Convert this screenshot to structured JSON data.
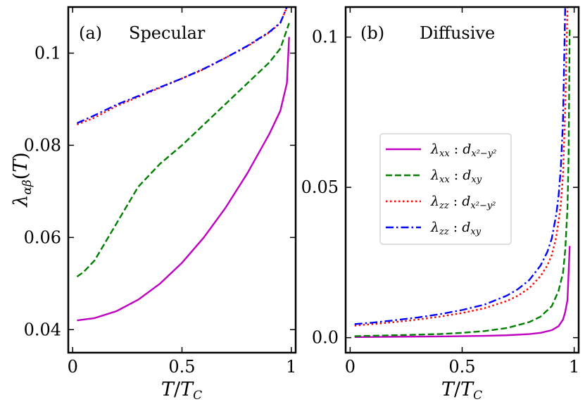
{
  "colors": {
    "magenta": "#c000c0",
    "green": "#008000",
    "red": "#ff0000",
    "blue": "#0000ff"
  },
  "chart_data": [
    {
      "type": "line",
      "title": "Specular",
      "panel_label": "(a)",
      "xlabel": "T/T_C",
      "ylabel": "λ_αβ(T)",
      "xlim": [
        -0.02,
        1.02
      ],
      "ylim": [
        0.035,
        0.11
      ],
      "xticks": [
        0,
        0.5,
        1
      ],
      "xtick_labels": [
        "0",
        "0.5",
        "1"
      ],
      "yticks": [
        0.04,
        0.06,
        0.08,
        0.1
      ],
      "ytick_labels": [
        "0.04",
        "0.06",
        "0.08",
        "0.1"
      ],
      "series": [
        {
          "name": "λxx : dx²−y²",
          "color": "#c000c0",
          "dash": "solid",
          "x": [
            0.02,
            0.1,
            0.2,
            0.3,
            0.4,
            0.5,
            0.6,
            0.7,
            0.8,
            0.9,
            0.95,
            0.98,
            0.99
          ],
          "y": [
            0.042,
            0.0425,
            0.044,
            0.0465,
            0.05,
            0.0545,
            0.06,
            0.0665,
            0.074,
            0.0825,
            0.0875,
            0.0935,
            0.1035
          ]
        },
        {
          "name": "λxx : dxy",
          "color": "#008000",
          "dash": "dashed",
          "x": [
            0.02,
            0.05,
            0.1,
            0.2,
            0.3,
            0.4,
            0.5,
            0.6,
            0.7,
            0.8,
            0.9,
            0.95,
            0.99
          ],
          "y": [
            0.0515,
            0.0525,
            0.055,
            0.063,
            0.071,
            0.076,
            0.08,
            0.0845,
            0.089,
            0.0935,
            0.098,
            0.101,
            0.1065
          ]
        },
        {
          "name": "λzz : dx²−y²",
          "color": "#ff0000",
          "dash": "dotted",
          "x": [
            0.02,
            0.1,
            0.2,
            0.3,
            0.4,
            0.5,
            0.6,
            0.7,
            0.8,
            0.9,
            0.95,
            0.98
          ],
          "y": [
            0.0845,
            0.086,
            0.0885,
            0.0905,
            0.0925,
            0.0945,
            0.0965,
            0.099,
            0.1015,
            0.1045,
            0.1065,
            0.11
          ]
        },
        {
          "name": "λzz : dxy",
          "color": "#0000ff",
          "dash": "dashdot",
          "x": [
            0.02,
            0.1,
            0.2,
            0.3,
            0.4,
            0.5,
            0.6,
            0.7,
            0.8,
            0.9,
            0.95,
            0.98
          ],
          "y": [
            0.0848,
            0.0865,
            0.0888,
            0.0907,
            0.0926,
            0.0945,
            0.0966,
            0.099,
            0.1016,
            0.1046,
            0.1066,
            0.11
          ]
        }
      ]
    },
    {
      "type": "line",
      "title": "Diffusive",
      "panel_label": "(b)",
      "xlabel": "T/T_C",
      "ylabel": "",
      "xlim": [
        -0.02,
        1.02
      ],
      "ylim": [
        -0.005,
        0.11
      ],
      "xticks": [
        0,
        0.5,
        1
      ],
      "xtick_labels": [
        "0",
        "0.5",
        "1"
      ],
      "yticks": [
        0.0,
        0.05,
        0.1
      ],
      "ytick_labels": [
        "0.0",
        "0.05",
        "0.1"
      ],
      "legend_position": "center-right",
      "series": [
        {
          "name": "λxx : dx²−y²",
          "color": "#c000c0",
          "dash": "solid",
          "x": [
            0.02,
            0.2,
            0.4,
            0.6,
            0.7,
            0.8,
            0.85,
            0.9,
            0.93,
            0.95,
            0.96,
            0.97,
            0.98
          ],
          "y": [
            0.0002,
            0.0003,
            0.0004,
            0.0006,
            0.0008,
            0.0012,
            0.0016,
            0.0025,
            0.0038,
            0.006,
            0.0085,
            0.0125,
            0.0305
          ]
        },
        {
          "name": "λxx : dxy",
          "color": "#008000",
          "dash": "dashed",
          "x": [
            0.02,
            0.2,
            0.4,
            0.5,
            0.6,
            0.7,
            0.8,
            0.85,
            0.9,
            0.93,
            0.95,
            0.96,
            0.97,
            0.975,
            0.98
          ],
          "y": [
            0.0005,
            0.0008,
            0.0012,
            0.0016,
            0.0022,
            0.0032,
            0.0052,
            0.007,
            0.0105,
            0.0155,
            0.0215,
            0.029,
            0.043,
            0.06,
            0.103
          ]
        },
        {
          "name": "λzz : dx²−y²",
          "color": "#ff0000",
          "dash": "dotted",
          "x": [
            0.02,
            0.1,
            0.2,
            0.3,
            0.4,
            0.5,
            0.6,
            0.7,
            0.75,
            0.8,
            0.85,
            0.88,
            0.9,
            0.92,
            0.94,
            0.95,
            0.96,
            0.97
          ],
          "y": [
            0.004,
            0.0045,
            0.0052,
            0.006,
            0.007,
            0.0082,
            0.0098,
            0.0122,
            0.014,
            0.0165,
            0.0205,
            0.024,
            0.0275,
            0.0335,
            0.044,
            0.054,
            0.076,
            0.11
          ]
        },
        {
          "name": "λzz : dxy",
          "color": "#0000ff",
          "dash": "dashdot",
          "x": [
            0.02,
            0.1,
            0.2,
            0.3,
            0.4,
            0.5,
            0.6,
            0.7,
            0.75,
            0.8,
            0.85,
            0.88,
            0.9,
            0.92,
            0.93,
            0.94,
            0.95,
            0.96
          ],
          "y": [
            0.0045,
            0.005,
            0.0058,
            0.0067,
            0.0078,
            0.0092,
            0.011,
            0.014,
            0.0162,
            0.0192,
            0.024,
            0.0285,
            0.033,
            0.041,
            0.047,
            0.056,
            0.072,
            0.11
          ]
        }
      ]
    }
  ]
}
